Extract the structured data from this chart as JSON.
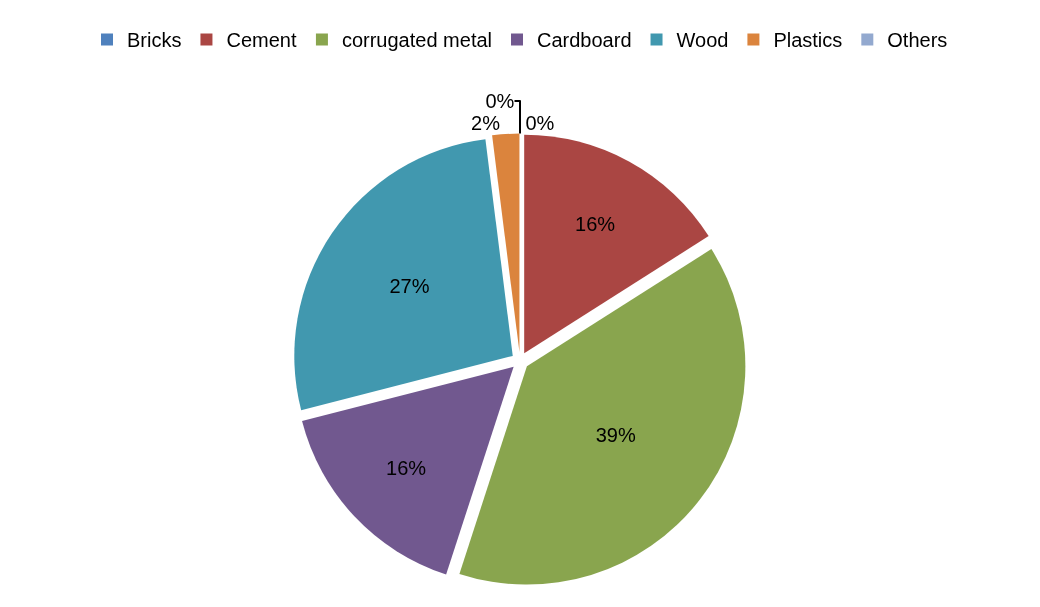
{
  "chart_data": {
    "type": "pie",
    "categories": [
      "Bricks",
      "Cement",
      "corrugated metal",
      "Cardboard",
      "Wood",
      "Plastics",
      "Others"
    ],
    "values": [
      0,
      16,
      39,
      16,
      27,
      2,
      0
    ],
    "colors": [
      "#4f81bd",
      "#aa4643",
      "#89a54e",
      "#71588f",
      "#4198af",
      "#db843d",
      "#93a9cf"
    ],
    "value_labels": [
      "0%",
      "16%",
      "39%",
      "16%",
      "27%",
      "2%",
      "0%"
    ],
    "data_labels": true,
    "legend": "top"
  }
}
